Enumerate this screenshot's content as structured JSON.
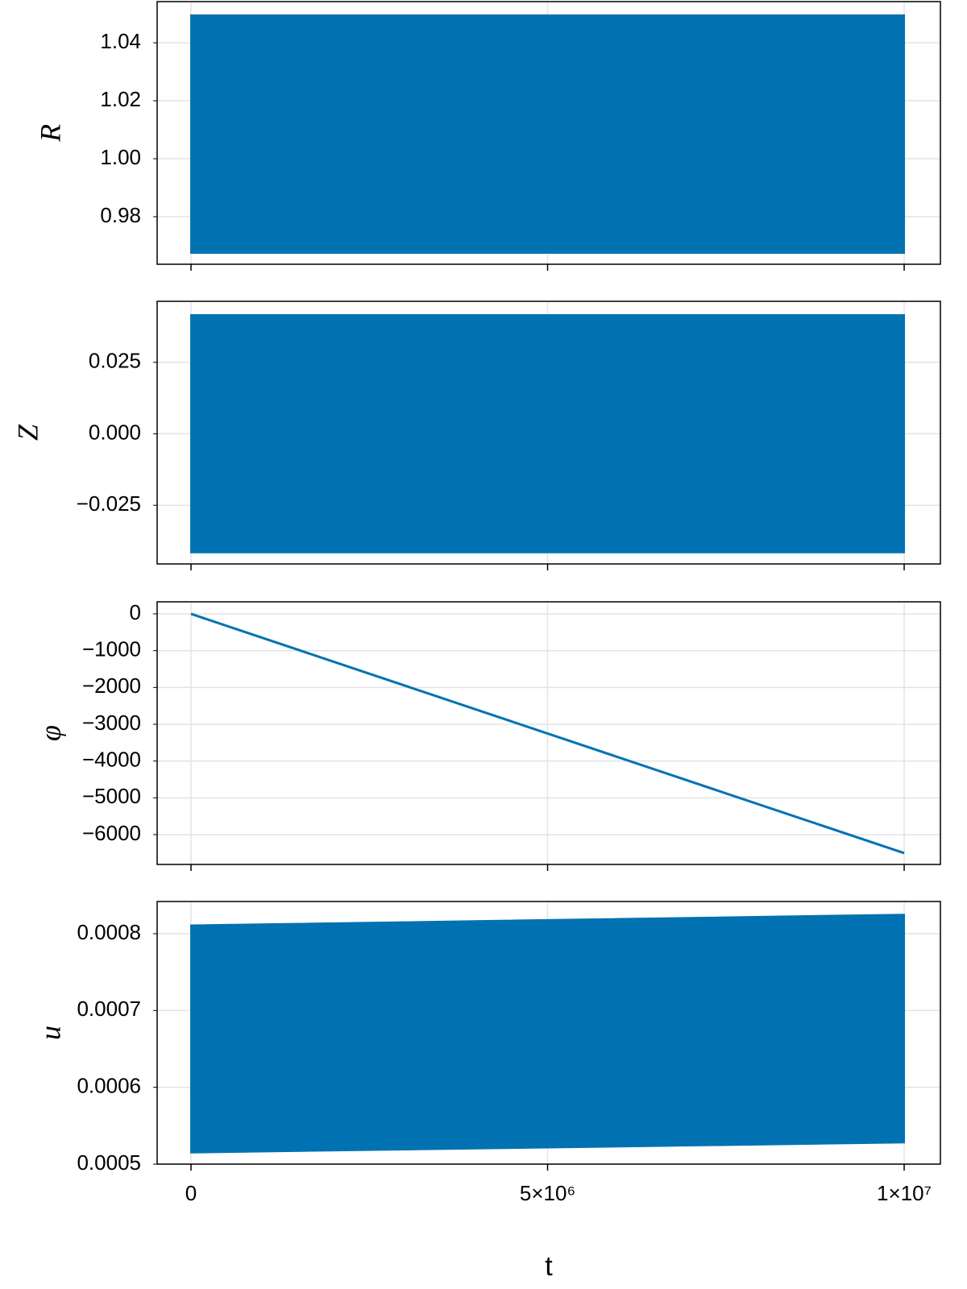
{
  "chart_data": [
    {
      "type": "band",
      "y_label": "R",
      "x": [
        0,
        10000000
      ],
      "lower": [
        0.9675,
        0.9675
      ],
      "upper": [
        1.0495,
        1.0495
      ],
      "color": "#0072b2",
      "xlim": [
        -475000,
        10508000
      ],
      "xticks": [
        0,
        5000000,
        10000000
      ],
      "ylim": [
        0.9636,
        1.0542
      ],
      "yticks": [
        0.98,
        {
          "value": 1.0,
          "label": "1.00"
        },
        1.02,
        1.04
      ],
      "grid": true
    },
    {
      "type": "band",
      "y_label": "Z",
      "x": [
        0,
        10000000
      ],
      "lower": [
        -0.0415,
        -0.0415
      ],
      "upper": [
        0.0415,
        0.0415
      ],
      "color": "#0072b2",
      "xlim": [
        -475000,
        10508000
      ],
      "xticks": [
        0,
        5000000,
        10000000
      ],
      "ylim": [
        -0.0455,
        0.0463
      ],
      "yticks": [
        {
          "value": -0.025,
          "label": "−0.025"
        },
        {
          "value": 0,
          "label": "0.000"
        },
        0.025
      ],
      "grid": true
    },
    {
      "type": "line",
      "y_label": "φ",
      "x": [
        0,
        10000000
      ],
      "values": [
        0,
        -6503
      ],
      "color": "#0072b2",
      "xlim": [
        -475000,
        10508000
      ],
      "xticks": [
        0,
        5000000,
        10000000
      ],
      "ylim": [
        -6810,
        328
      ],
      "yticks": [
        {
          "value": -6000,
          "label": "−6000"
        },
        {
          "value": -5000,
          "label": "−5000"
        },
        {
          "value": -4000,
          "label": "−4000"
        },
        {
          "value": -3000,
          "label": "−3000"
        },
        {
          "value": -2000,
          "label": "−2000"
        },
        {
          "value": -1000,
          "label": "−1000"
        },
        0
      ],
      "grid": true
    },
    {
      "type": "band",
      "y_label": "u",
      "x_label": "t",
      "x": [
        0,
        10000000
      ],
      "lower": [
        0.000515,
        0.000528
      ],
      "upper": [
        0.000811,
        0.000825
      ],
      "color": "#0072b2",
      "xlim": [
        -475000,
        10508000
      ],
      "xticks": [
        0,
        {
          "value": 5000000,
          "label": "5×10⁶"
        },
        {
          "value": 10000000,
          "label": "1×10⁷"
        }
      ],
      "ylim": [
        0.0005,
        0.000842
      ],
      "yticks": [
        0.0005,
        0.0006,
        0.0007,
        0.0008
      ],
      "grid": true
    }
  ]
}
